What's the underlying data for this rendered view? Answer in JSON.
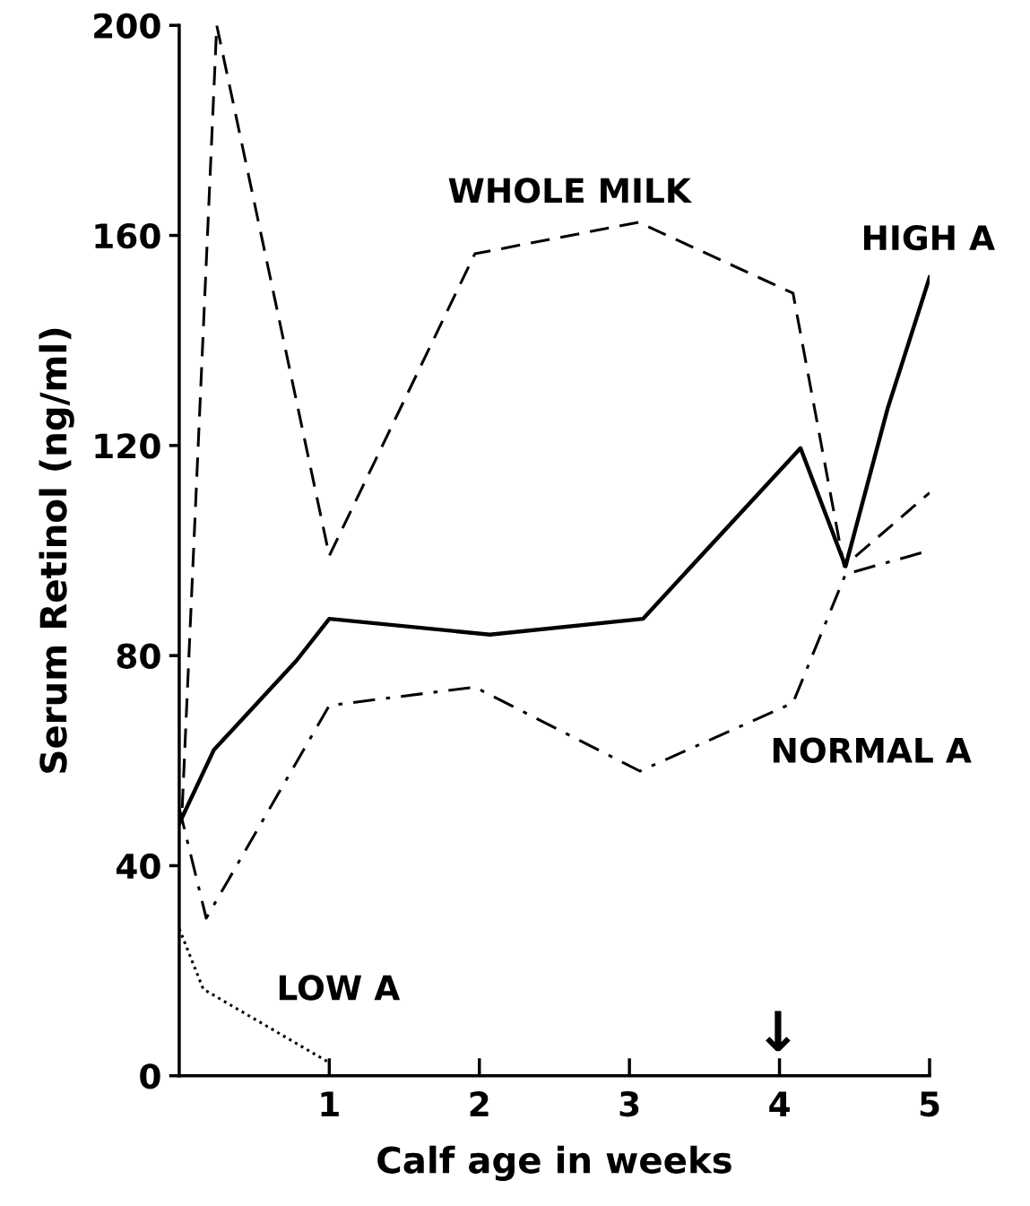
{
  "chart_data": {
    "type": "line",
    "xlabel": "Calf age in weeks",
    "ylabel": "Serum Retinol (ng/ml)",
    "xlim": [
      0,
      5
    ],
    "xticks": [
      1,
      2,
      3,
      4,
      5
    ],
    "ylim": [
      0,
      200
    ],
    "yticks": [
      0,
      40,
      80,
      120,
      160,
      200
    ],
    "grid": false,
    "legend": false,
    "marker": "none",
    "series": [
      {
        "name": "WHOLE MILK",
        "color": "#000000",
        "line_style": "dashed",
        "x": [
          0.02,
          0.25,
          1,
          1.97,
          3.06,
          4.09,
          4.43,
          5.0
        ],
        "values": [
          51,
          200,
          99,
          156.5,
          162.5,
          149,
          97,
          111
        ]
      },
      {
        "name": "HIGH A",
        "color": "#000000",
        "line_style": "solid",
        "x": [
          0,
          0.23,
          0.78,
          1,
          2.07,
          3.09,
          4.14,
          4.44,
          4.72,
          5.0
        ],
        "values": [
          48,
          62,
          79,
          87,
          84,
          87,
          119.5,
          97,
          127,
          152
        ]
      },
      {
        "name": "NORMAL A",
        "color": "#000000",
        "line_style": "dashdot",
        "x": [
          0,
          0.18,
          1,
          1.97,
          3.07,
          4.09,
          4.44,
          5.0
        ],
        "values": [
          51,
          30,
          70.5,
          74,
          58,
          71,
          95.5,
          100
        ]
      },
      {
        "name": "LOW A",
        "color": "#000000",
        "line_style": "dotted",
        "x": [
          0,
          0.16,
          1
        ],
        "values": [
          28,
          16.5,
          2.5
        ]
      }
    ],
    "annotations": [
      "↓"
    ]
  }
}
